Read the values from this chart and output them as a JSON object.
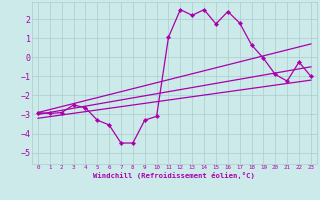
{
  "xlabel": "Windchill (Refroidissement éolien,°C)",
  "bg_color": "#cceaea",
  "grid_color": "#aacccc",
  "line_color": "#aa00aa",
  "xlim": [
    -0.5,
    23.5
  ],
  "ylim": [
    -5.6,
    2.9
  ],
  "xticks": [
    0,
    1,
    2,
    3,
    4,
    5,
    6,
    7,
    8,
    9,
    10,
    11,
    12,
    13,
    14,
    15,
    16,
    17,
    18,
    19,
    20,
    21,
    22,
    23
  ],
  "yticks": [
    -5,
    -4,
    -3,
    -2,
    -1,
    0,
    1,
    2
  ],
  "series0_x": [
    0,
    1,
    2,
    3,
    4,
    5,
    6,
    7,
    8,
    9,
    10,
    11,
    12,
    13,
    14,
    15,
    16,
    17,
    18,
    19,
    20,
    21,
    22,
    23
  ],
  "series0_y": [
    -2.9,
    -2.95,
    -2.9,
    -2.5,
    -2.65,
    -3.3,
    -3.55,
    -4.5,
    -4.5,
    -3.3,
    -3.1,
    1.05,
    2.5,
    2.2,
    2.5,
    1.75,
    2.4,
    1.8,
    0.65,
    -0.05,
    -0.9,
    -1.25,
    -0.25,
    -1.0
  ],
  "line1": {
    "x": [
      0,
      23
    ],
    "y": [
      -2.9,
      0.7
    ]
  },
  "line2": {
    "x": [
      0,
      23
    ],
    "y": [
      -3.0,
      -0.5
    ]
  },
  "line3": {
    "x": [
      0,
      23
    ],
    "y": [
      -3.2,
      -1.2
    ]
  }
}
